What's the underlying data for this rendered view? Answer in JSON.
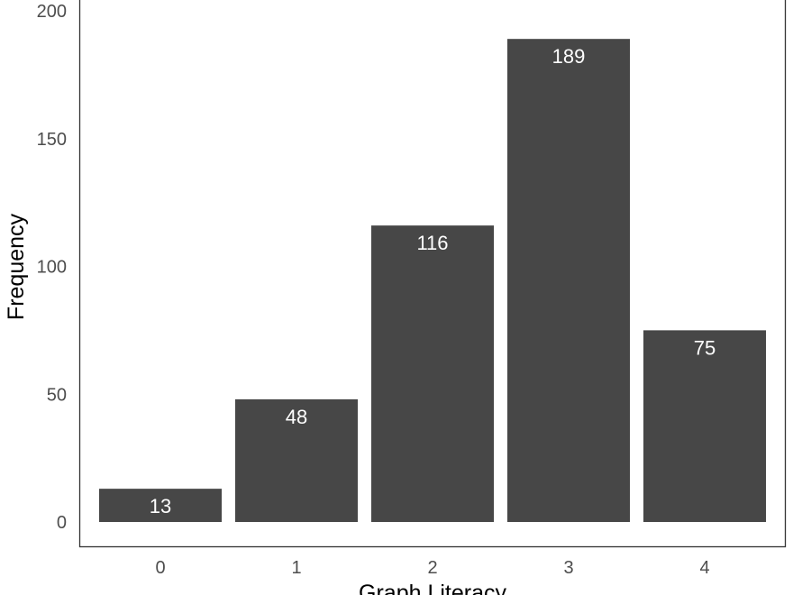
{
  "chart_data": {
    "type": "bar",
    "categories": [
      "0",
      "1",
      "2",
      "3",
      "4"
    ],
    "values": [
      13,
      48,
      116,
      189,
      75
    ],
    "data_labels": [
      "13",
      "48",
      "116",
      "189",
      "75"
    ],
    "title": "",
    "xlabel": "Graph Literacy",
    "ylabel": "Frequency",
    "ylim": [
      -9.45,
      209
    ],
    "yticks": [
      0,
      50,
      100,
      150,
      200
    ],
    "ytick_labels": [
      "0",
      "50",
      "100",
      "150",
      "200"
    ],
    "grid": false,
    "legend": "none",
    "bar_color": "#474747",
    "label_color": "#ffffff",
    "panel_border_color": "#333333"
  }
}
